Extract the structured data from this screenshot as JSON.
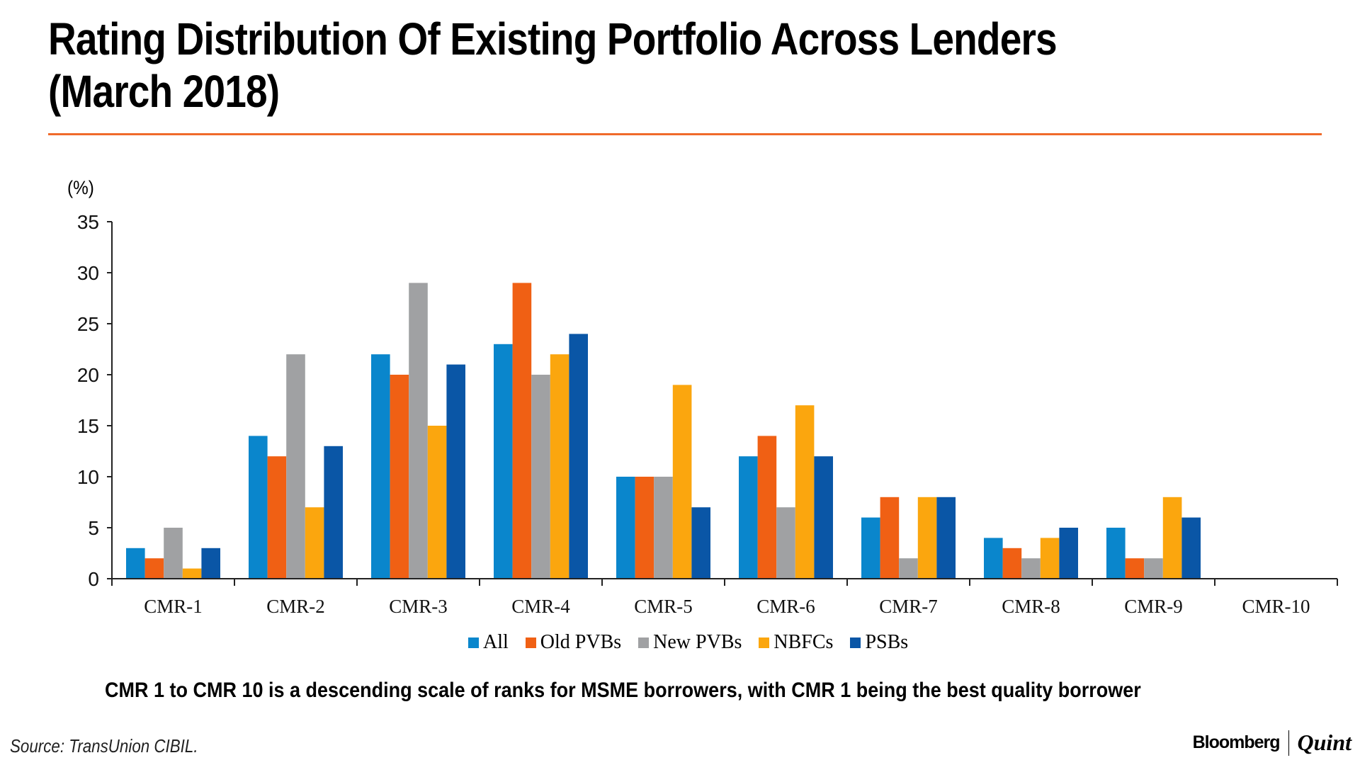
{
  "title_line1": "Rating Distribution Of Existing Portfolio Across Lenders",
  "title_line2": "(March 2018)",
  "note": "CMR 1 to CMR 10 is a descending scale of ranks for MSME borrowers, with CMR 1 being the best quality borrower",
  "source": "Source: TransUnion CIBIL.",
  "brand": {
    "left": "Bloomberg",
    "right": "Quint"
  },
  "colors": {
    "rule": "#f06a2a"
  },
  "chart_data": {
    "type": "bar",
    "title": "Rating Distribution Of Existing Portfolio Across Lenders (March 2018)",
    "xlabel": "",
    "ylabel": "(%)",
    "ylim": [
      0,
      35
    ],
    "yticks": [
      0,
      5,
      10,
      15,
      20,
      25,
      30,
      35
    ],
    "grid": false,
    "legend_position": "bottom",
    "categories": [
      "CMR-1",
      "CMR-2",
      "CMR-3",
      "CMR-4",
      "CMR-5",
      "CMR-6",
      "CMR-7",
      "CMR-8",
      "CMR-9",
      "CMR-10"
    ],
    "series": [
      {
        "name": "All",
        "color": "#0a86cc",
        "values": [
          3,
          14,
          22,
          23,
          10,
          12,
          6,
          4,
          5,
          0
        ]
      },
      {
        "name": "Old PVBs",
        "color": "#f06014",
        "values": [
          2,
          12,
          20,
          29,
          10,
          14,
          8,
          3,
          2,
          0
        ]
      },
      {
        "name": "New PVBs",
        "color": "#a0a1a3",
        "values": [
          5,
          22,
          29,
          20,
          10,
          7,
          2,
          2,
          2,
          0
        ]
      },
      {
        "name": "NBFCs",
        "color": "#fba60e",
        "values": [
          1,
          7,
          15,
          22,
          19,
          17,
          8,
          4,
          8,
          0
        ]
      },
      {
        "name": "PSBs",
        "color": "#0a56a6",
        "values": [
          3,
          13,
          21,
          24,
          7,
          12,
          8,
          5,
          6,
          0
        ]
      }
    ]
  }
}
